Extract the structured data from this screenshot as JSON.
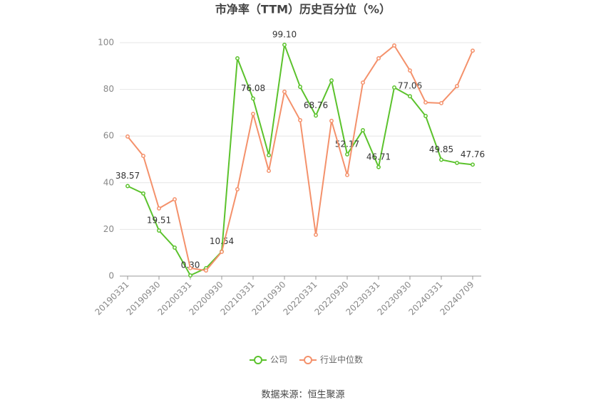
{
  "chart_data": {
    "type": "line",
    "title": "市净率（TTM）历史百分位（%）",
    "categories": [
      "20190331",
      null,
      "20190930",
      null,
      "20200331",
      null,
      "20200930",
      null,
      "20210331",
      null,
      "20210930",
      null,
      "20220331",
      null,
      "20220930",
      null,
      "20230331",
      null,
      "20230930",
      null,
      "20240331",
      null,
      "20240709"
    ],
    "series": [
      {
        "name": "公司",
        "color": "#5bc22c",
        "values": [
          38.57,
          35.4,
          19.51,
          12.2,
          0.3,
          3.4,
          10.54,
          93.3,
          76.08,
          51.8,
          99.1,
          81.1,
          68.76,
          83.8,
          52.17,
          62.5,
          46.71,
          80.8,
          77.06,
          68.6,
          49.85,
          48.5,
          47.76
        ],
        "value_labels": [
          "38.57",
          null,
          "19.51",
          null,
          "0.30",
          null,
          "10.54",
          null,
          "76.08",
          null,
          "99.10",
          null,
          "68.76",
          null,
          "52.17",
          null,
          "46.71",
          null,
          "77.06",
          null,
          "49.85",
          null,
          "47.76"
        ]
      },
      {
        "name": "行业中位数",
        "color": "#f4916b",
        "values": [
          59.8,
          51.5,
          29.0,
          32.9,
          3.4,
          2.4,
          10.4,
          37.2,
          69.5,
          45.1,
          79.0,
          66.8,
          17.7,
          66.5,
          43.3,
          82.9,
          93.3,
          98.8,
          88.1,
          74.4,
          74.1,
          81.4,
          96.6
        ]
      }
    ],
    "ylim": [
      0,
      100
    ],
    "yticks": [
      0,
      20,
      40,
      60,
      80,
      100
    ],
    "grid": true,
    "legend": "bottom",
    "source": "数据来源：恒生聚源"
  }
}
